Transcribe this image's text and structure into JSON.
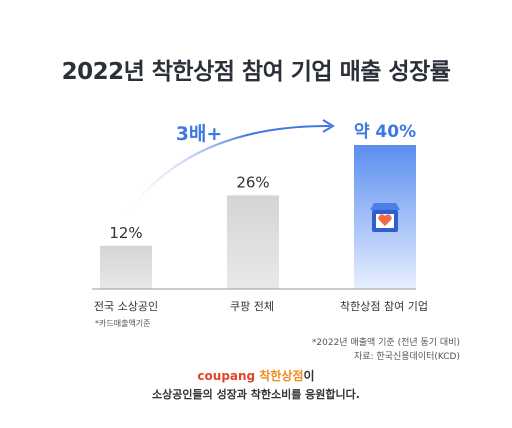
{
  "chart_data": {
    "type": "bar",
    "title": "2022년 착한상점 참여 기업 매출 성장률",
    "categories": [
      "전국 소상공인",
      "쿠팡 전체",
      "착한상점 참여 기업"
    ],
    "values": [
      12,
      26,
      40
    ],
    "value_labels": [
      "12%",
      "26%",
      "약 40%"
    ],
    "category_notes": [
      "*카드매출액기준",
      "",
      ""
    ],
    "ylim": [
      0,
      45
    ],
    "grid": false,
    "annotation": "3배+",
    "colors": {
      "bars": "#d9d9d9",
      "highlight_top": "#5b8ef0",
      "highlight_bottom": "#e7efff",
      "accent": "#3f78e0"
    }
  },
  "footnote": "*2022년 매출액 기준 (전년 동기 대비)",
  "source": "자료: 한국신용데이터(KCD)",
  "brand": {
    "logo": "coupang",
    "program": "착한상점",
    "suffix": "이"
  },
  "slogan": "소상공인들의 성장과 착한소비를 응원합니다.",
  "icons": [
    "store-heart-icon"
  ]
}
